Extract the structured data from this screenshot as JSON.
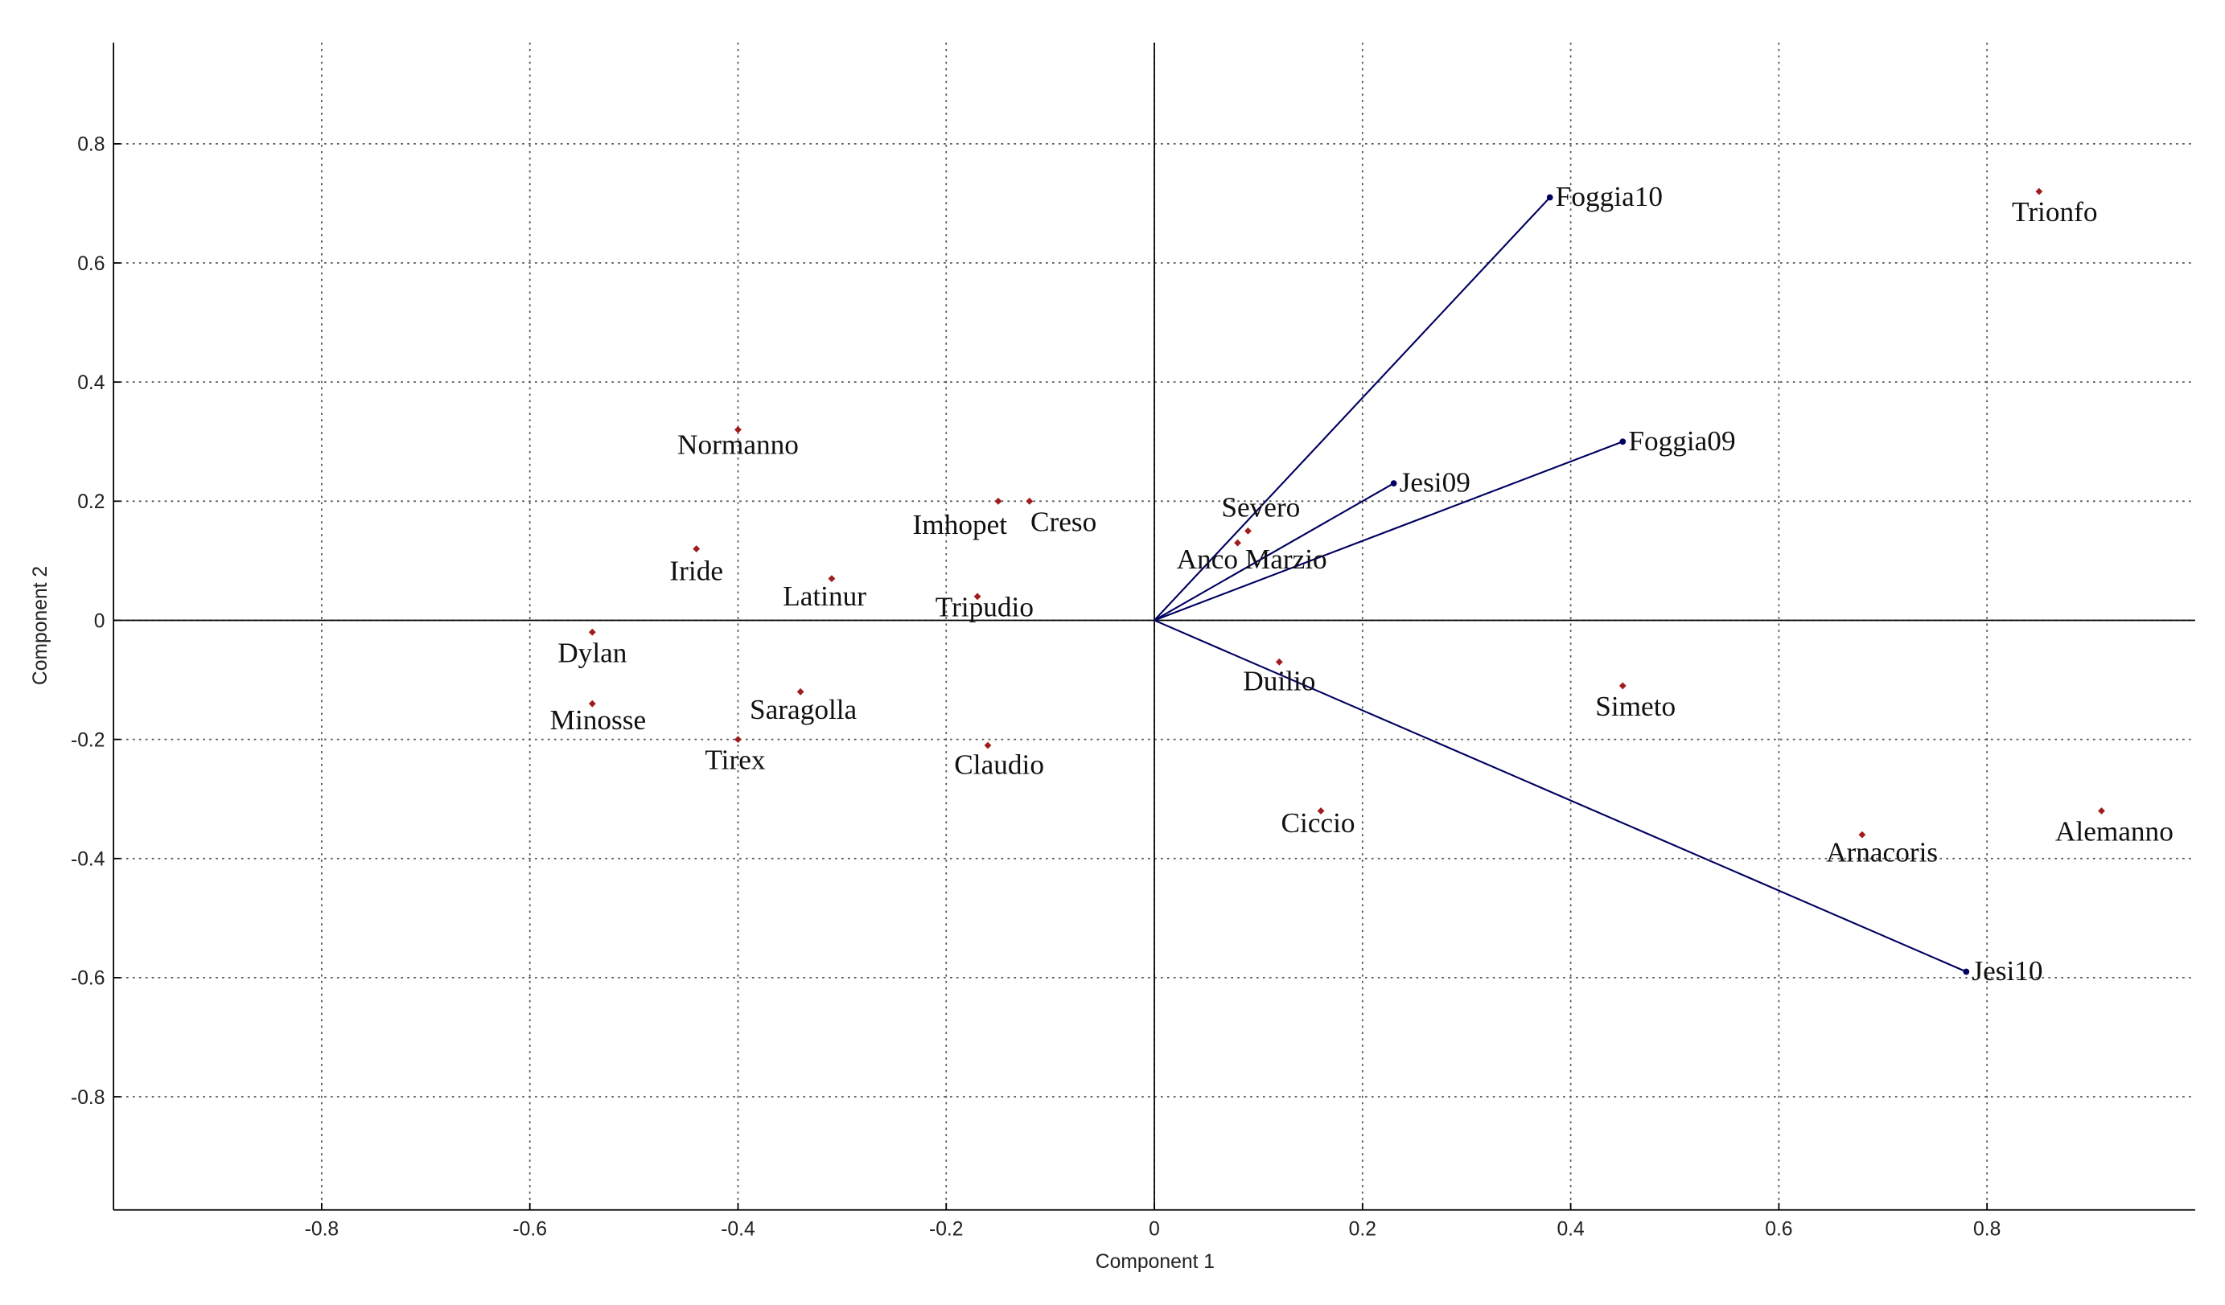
{
  "chart_data": {
    "type": "biplot",
    "xlabel": "Component 1",
    "ylabel": "Component 2",
    "xlim": [
      -1,
      1
    ],
    "ylim": [
      -0.99,
      0.97
    ],
    "xticks": [
      -0.8,
      -0.6,
      -0.4,
      -0.2,
      0,
      0.2,
      0.4,
      0.6,
      0.8
    ],
    "yticks": [
      -0.8,
      -0.6,
      -0.4,
      -0.2,
      0,
      0.2,
      0.4,
      0.6,
      0.8
    ],
    "grid": true,
    "points": {
      "color": "#a01c1c",
      "labels": [
        "Normanno",
        "Iride",
        "Dylan",
        "Minosse",
        "Latinur",
        "Saragolla",
        "Tirex",
        "Imhopet",
        "Creso",
        "Tripudio",
        "Claudio",
        "Severo",
        "Anco Marzio",
        "Duilio",
        "Ciccio",
        "Simeto",
        "Arnacoris",
        "Alemanno",
        "Trionfo"
      ],
      "x": [
        -0.4,
        -0.44,
        -0.54,
        -0.54,
        -0.31,
        -0.34,
        -0.4,
        -0.15,
        -0.12,
        -0.17,
        -0.16,
        0.09,
        0.08,
        0.12,
        0.16,
        0.45,
        0.68,
        0.91,
        0.85
      ],
      "y": [
        0.32,
        0.12,
        -0.02,
        -0.14,
        0.07,
        -0.12,
        -0.2,
        0.2,
        0.2,
        0.04,
        -0.21,
        0.15,
        0.13,
        -0.07,
        -0.32,
        -0.11,
        -0.36,
        -0.32,
        0.72
      ]
    },
    "vectors": {
      "color": "#000060",
      "labels": [
        "Foggia10",
        "Jesi09",
        "Foggia09",
        "Jesi10"
      ],
      "x": [
        0.38,
        0.23,
        0.45,
        0.78
      ],
      "y": [
        0.71,
        0.23,
        0.3,
        -0.59
      ]
    }
  }
}
